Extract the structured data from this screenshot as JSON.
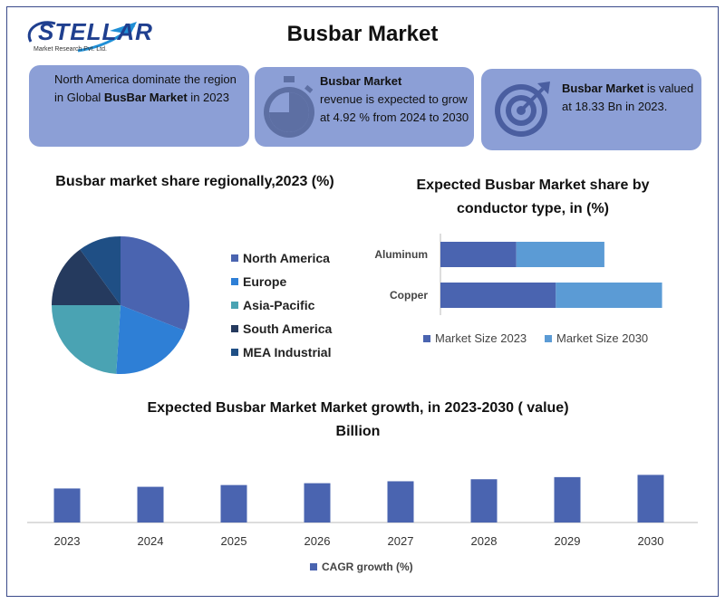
{
  "logo": {
    "name": "STELLAR",
    "sub": "Market Research Pvt. Ltd."
  },
  "title": "Busbar Market",
  "cards": {
    "c1": {
      "pre": "North America dominate the region in Global ",
      "bold": "BusBar Market",
      "post": " in 2023"
    },
    "c2": {
      "bold": "Busbar Market",
      "post": "revenue is expected to grow at 4.92 % from 2024 to 2030",
      "icon": "stopwatch-icon"
    },
    "c3": {
      "bold": "Busbar Market",
      "mid": " is valued at 18.33 Bn in 2023.",
      "icon": "target-icon"
    }
  },
  "colors": {
    "card_bg": "#8c9fd6",
    "dark_blue": "#4a64b0",
    "light_blue": "#5b9bd5",
    "teal": "#4aa3b3",
    "navy": "#253a5e",
    "mid_blue": "#2a5f98"
  },
  "chart_data": [
    {
      "type": "pie",
      "title": "Busbar market share regionally,2023 (%)",
      "labels": [
        "North America",
        "Europe",
        "Asia-Pacific",
        "South America",
        "MEA Industrial"
      ],
      "values": [
        31,
        20,
        24,
        15,
        10
      ],
      "colors": [
        "#4a64b0",
        "#2e7fd6",
        "#4aa3b3",
        "#253a5e",
        "#1f4f85"
      ],
      "legend": "right"
    },
    {
      "type": "bar",
      "orientation": "horizontal",
      "stacked": true,
      "title": "Expected Busbar Market share by conductor type, in (%)",
      "categories": [
        "Aluminum",
        "Copper"
      ],
      "series": [
        {
          "name": "Market Size 2023",
          "values": [
            25,
            38
          ],
          "color": "#4a64b0"
        },
        {
          "name": "Market Size 2030",
          "values": [
            29,
            35
          ],
          "color": "#5b9bd5"
        }
      ],
      "legend": "bottom"
    },
    {
      "type": "bar",
      "title": "Expected Busbar Market Market growth, in 2023-2030 ( value) Billion",
      "categories": [
        "2023",
        "2024",
        "2025",
        "2026",
        "2027",
        "2028",
        "2029",
        "2030"
      ],
      "series": [
        {
          "name": "CAGR growth (%)",
          "values": [
            18.33,
            19.23,
            20.18,
            21.17,
            22.21,
            23.3,
            24.45,
            25.65
          ],
          "color": "#4a64b0"
        }
      ],
      "legend": "bottom"
    }
  ]
}
